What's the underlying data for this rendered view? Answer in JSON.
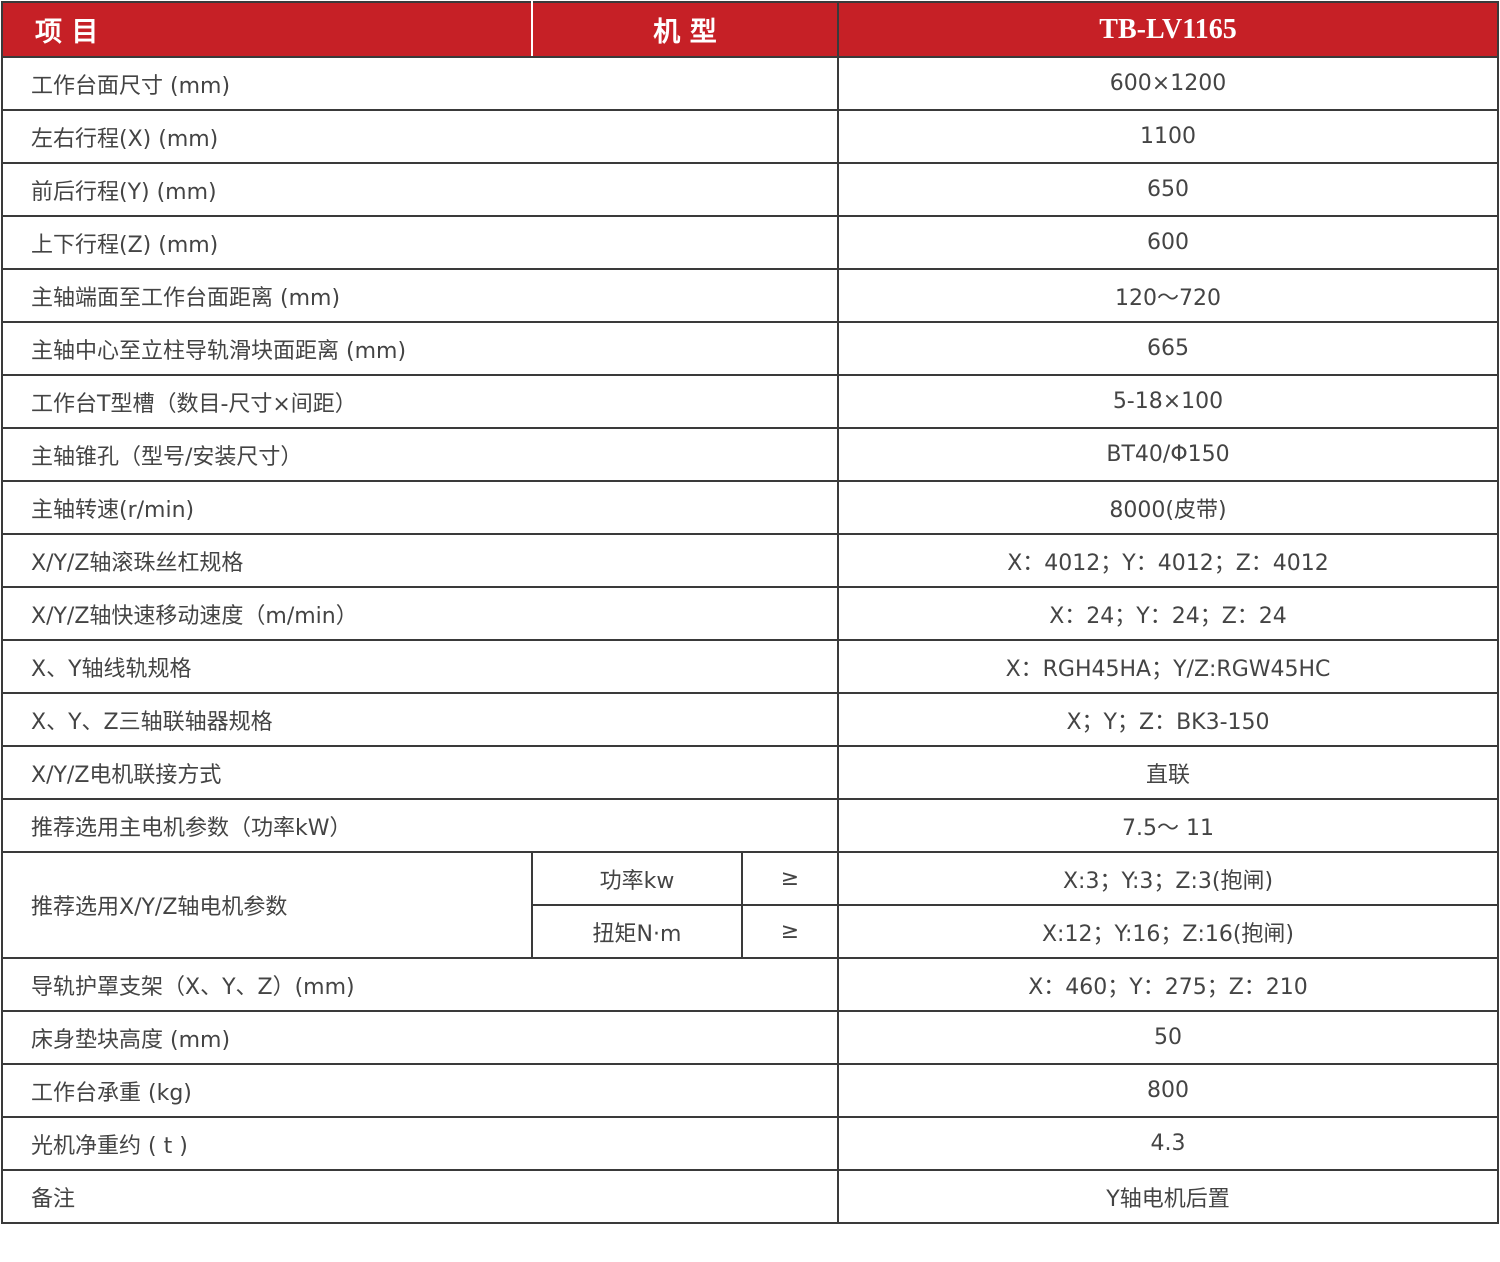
{
  "header": {
    "item": "项  目",
    "model_label": "机  型",
    "model": "TB-LV1165",
    "accent_color": "#c62026"
  },
  "rows": [
    {
      "label": "工作台面尺寸 (mm)",
      "value": "600×1200"
    },
    {
      "label": "左右行程(X)  (mm)",
      "value": "1100"
    },
    {
      "label": "前后行程(Y)  (mm)",
      "value": "650"
    },
    {
      "label": "上下行程(Z)  (mm)",
      "value": "600"
    },
    {
      "label": "主轴端面至工作台面距离 (mm)",
      "value": "120～720"
    },
    {
      "label": "主轴中心至立柱导轨滑块面距离 (mm)",
      "value": "665"
    },
    {
      "label": "工作台T型槽（数目-尺寸×间距）",
      "value": "5-18×100"
    },
    {
      "label": "主轴锥孔（型号/安装尺寸）",
      "value": "BT40/Φ150"
    },
    {
      "label": "主轴转速(r/min)",
      "value": "8000(皮带)"
    },
    {
      "label": "X/Y/Z轴滚珠丝杠规格",
      "value": "X：4012；Y：4012；Z：4012"
    },
    {
      "label": "X/Y/Z轴快速移动速度（m/min）",
      "value": "X：24；Y：24；Z：24"
    },
    {
      "label": "X、Y轴线轨规格",
      "value": "X：RGH45HA；Y/Z:RGW45HC"
    },
    {
      "label": "X、Y、Z三轴联轴器规格",
      "value": "X；Y；Z：BK3-150"
    },
    {
      "label": "X/Y/Z电机联接方式",
      "value": "直联"
    },
    {
      "label": "推荐选用主电机参数（功率kW）",
      "value": "7.5～ 11"
    }
  ],
  "split_row": {
    "label": "推荐选用X/Y/Z轴电机参数",
    "subs": [
      {
        "label": "功率kw",
        "op": "≥",
        "value": "X:3；Y:3；Z:3(抱闸)"
      },
      {
        "label": "扭矩N·m",
        "op": "≥",
        "value": "X:12；Y:16；Z:16(抱闸)"
      }
    ]
  },
  "rows2": [
    {
      "label": "导轨护罩支架（X、Y、Z）(mm)",
      "value": "X：460；Y：275；Z：210"
    },
    {
      "label": "床身垫块高度 (mm)",
      "value": "50"
    },
    {
      "label": "工作台承重 (kg)",
      "value": "800"
    },
    {
      "label": "光机净重约 ( t )",
      "value": "4.3"
    },
    {
      "label": "备注",
      "value": "Y轴电机后置"
    }
  ]
}
